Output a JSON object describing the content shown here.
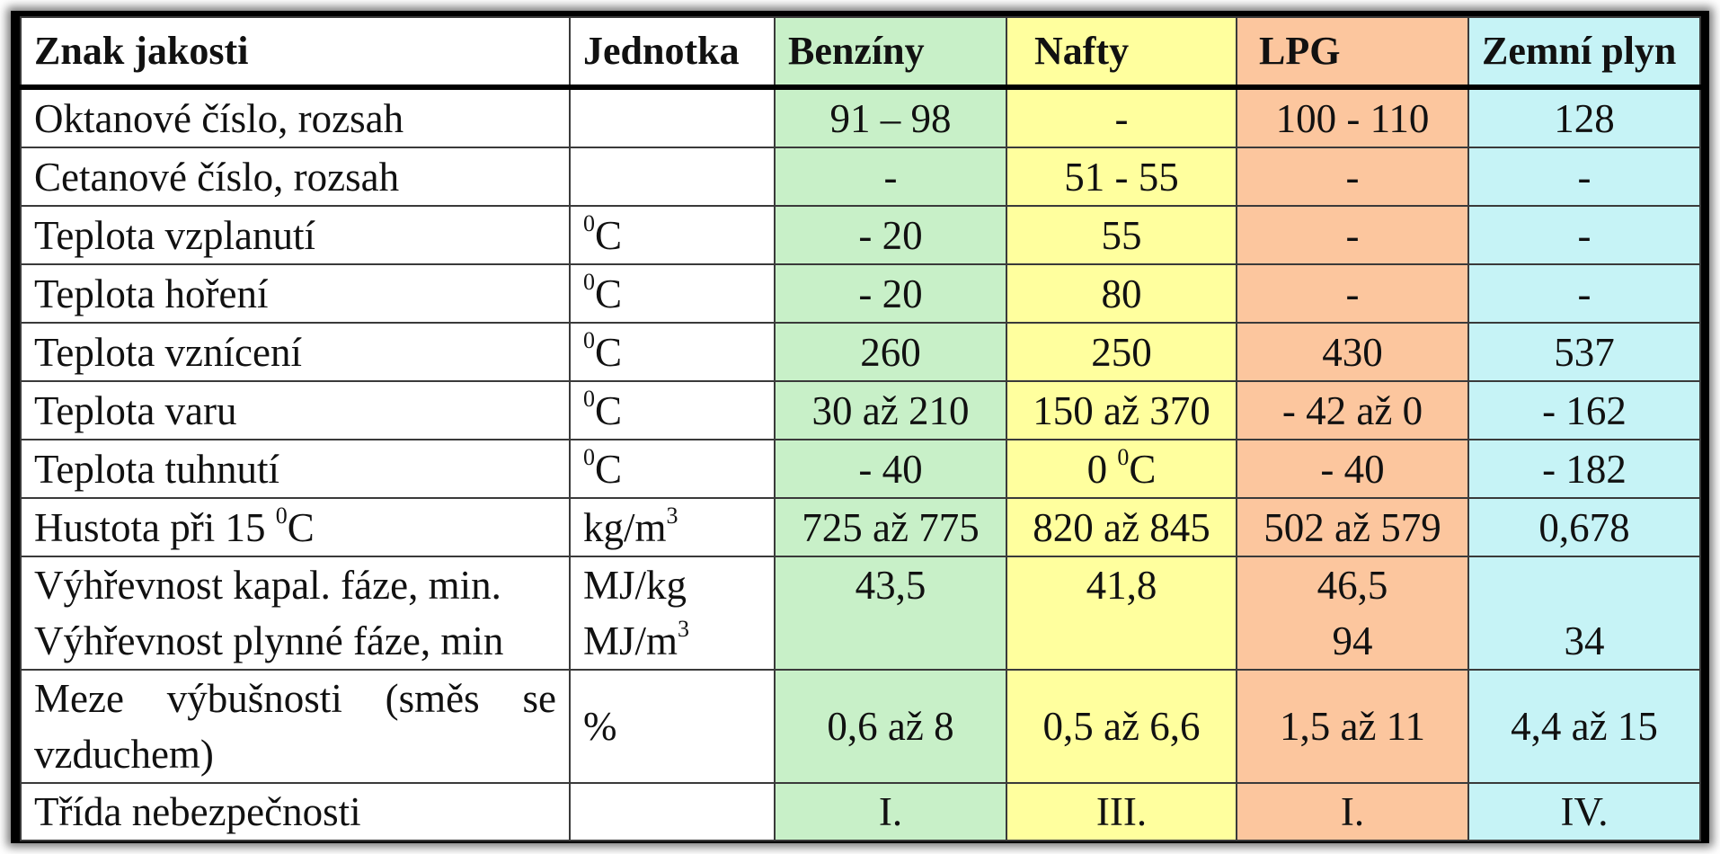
{
  "headers": {
    "name": "Znak jakosti",
    "unit": "Jednotka",
    "benziny": "Benzíny",
    "nafty": "Nafty",
    "lpg": "LPG",
    "zemni_plyn": "Zemní plyn"
  },
  "rows": {
    "oktan": {
      "name": "Oktanové číslo, rozsah",
      "unit": "",
      "benziny": "91 – 98",
      "nafty": "-",
      "lpg": "100 - 110",
      "zemni_plyn": "128"
    },
    "cetan": {
      "name": "Cetanové číslo, rozsah",
      "unit": "",
      "benziny": "-",
      "nafty": "51 - 55",
      "lpg": "-",
      "zemni_plyn": "-"
    },
    "vzplanuti": {
      "name": "Teplota vzplanutí",
      "unit_sup": "0",
      "unit": "C",
      "benziny": "- 20",
      "nafty": "55",
      "lpg": "-",
      "zemni_plyn": "-"
    },
    "horeni": {
      "name": "Teplota hoření",
      "unit_sup": "0",
      "unit": "C",
      "benziny": "- 20",
      "nafty": "80",
      "lpg": "-",
      "zemni_plyn": "-"
    },
    "vznoceni": {
      "name": "Teplota vznícení",
      "unit_sup": "0",
      "unit": "C",
      "benziny": "260",
      "nafty": "250",
      "lpg": "430",
      "zemni_plyn": "537"
    },
    "varu": {
      "name": "Teplota varu",
      "unit_sup": "0",
      "unit": "C",
      "benziny": "30 až 210",
      "nafty": "150 až 370",
      "lpg": "- 42 až 0",
      "zemni_plyn": "- 162"
    },
    "tuhnuti": {
      "name": "Teplota tuhnutí",
      "unit_sup": "0",
      "unit": "C",
      "benziny": "- 40",
      "nafty_pre": "0 ",
      "nafty_sup": "0",
      "nafty": "C",
      "lpg": "- 40",
      "zemni_plyn": "- 182"
    },
    "hustota": {
      "name_pre": "Hustota při 15 ",
      "name_sup": "0",
      "name": "C",
      "unit": "kg/m",
      "unit_sup": "3",
      "benziny": "725 až 775",
      "nafty": "820 až 845",
      "lpg": "502 až 579",
      "zemni_plyn": "0,678"
    },
    "vyhrevnost": {
      "name1": "Výhřevnost kapal. fáze, min.",
      "name2": "Výhřevnost plynné fáze, min",
      "unit1": "MJ/kg",
      "unit2": "MJ/m",
      "unit2_sup": "3",
      "benziny1": "43,5",
      "nafty1": "41,8",
      "lpg1": "46,5",
      "lpg2": "94",
      "zemni_plyn2": "34"
    },
    "meze": {
      "name": "Meze výbušnosti (směs se vzduchem)",
      "unit": "%",
      "benziny": "0,6 až 8",
      "nafty": "0,5 až 6,6",
      "lpg": "1,5 až 11",
      "zemni_plyn": "4,4 až 15"
    },
    "trida": {
      "name": "Třída nebezpečnosti",
      "unit": "",
      "benziny": "I.",
      "nafty": "III.",
      "lpg": "I.",
      "zemni_plyn": "IV."
    }
  },
  "colors": {
    "benziny": "#c8f0c8",
    "nafty": "#ffff9e",
    "lpg": "#fcc69e",
    "zemni_plyn": "#c6f3f6",
    "frame": "#000000"
  }
}
